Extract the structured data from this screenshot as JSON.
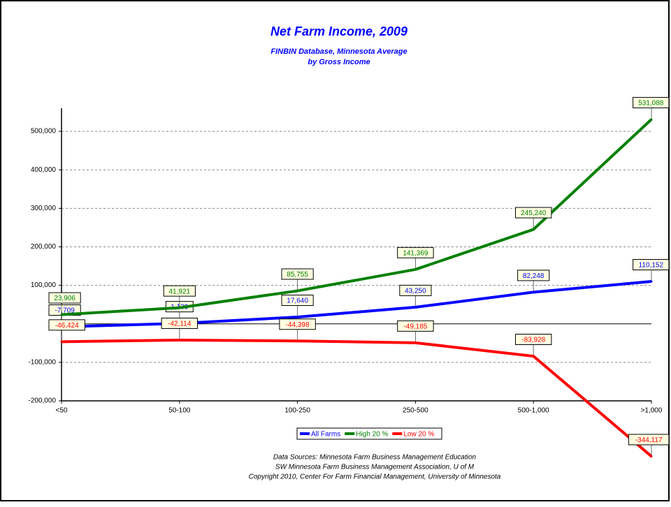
{
  "chart_data": {
    "type": "line",
    "title": "Net Farm Income, 2009",
    "subtitle": [
      "FINBIN Database, Minnesota Average",
      "by Gross Income"
    ],
    "categories": [
      "<50",
      "50-100",
      "100-250",
      "250-500",
      "500-1,000",
      ">1,000"
    ],
    "series": [
      {
        "name": "All Farms",
        "color": "#0000ff",
        "values": [
          -7709,
          1139,
          17640,
          43250,
          82248,
          110152
        ],
        "value_labels": [
          "-7,709",
          "1,139",
          "17,640",
          "43,250",
          "82,248",
          "110,152"
        ]
      },
      {
        "name": "High 20 %",
        "color": "#008000",
        "values": [
          23906,
          41921,
          85755,
          141369,
          245240,
          531088
        ],
        "value_labels": [
          "23,906",
          "41,921",
          "85,755",
          "141,369",
          "245,240",
          "531,088"
        ]
      },
      {
        "name": "Low 20 %",
        "color": "#ff0000",
        "values": [
          -46424,
          -42114,
          -44398,
          -49185,
          -83928,
          -344117
        ],
        "value_labels": [
          "-46,424",
          "-42,114",
          "-44,398",
          "-49,185",
          "-83,928",
          "-344,117"
        ]
      }
    ],
    "ylim": [
      -200000,
      560000
    ],
    "yticks": [
      {
        "value": -200000,
        "label": "-200,000"
      },
      {
        "value": -100000,
        "label": "-100,000"
      },
      0,
      {
        "value": 100000,
        "label": "100,000"
      },
      {
        "value": 200000,
        "label": "200,000"
      },
      {
        "value": 300000,
        "label": "300,000"
      },
      {
        "value": 400000,
        "label": "400,000"
      },
      {
        "value": 500000,
        "label": "500,000"
      }
    ],
    "grid": true,
    "legend": "bottom",
    "footer": [
      "Data Sources:  Minnesota Farm Business Management Education",
      "SW Minnesota Farm Business Management Association, U of M",
      "Copyright 2010, Center For Farm Financial Management, University of Minnesota"
    ]
  }
}
